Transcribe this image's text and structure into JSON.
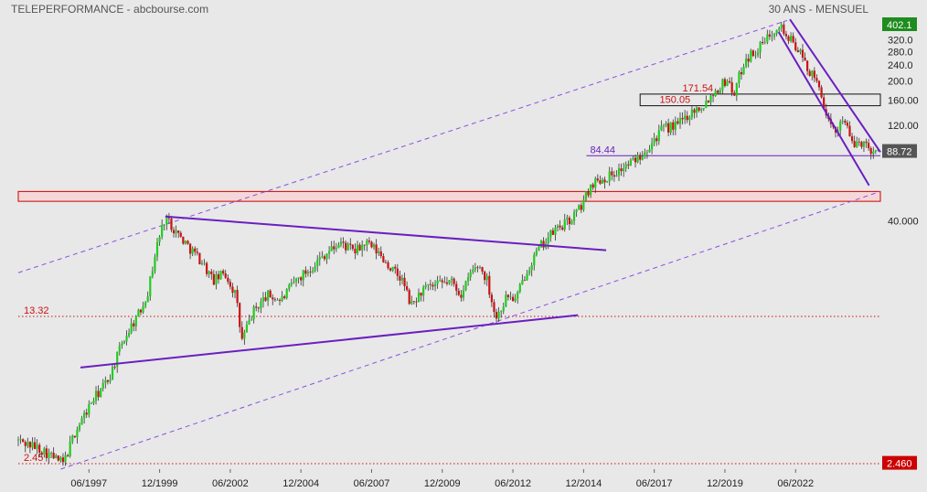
{
  "header": {
    "left_title": "TELEPERFORMANCE - abcbourse.com",
    "right_title": "30 ANS - MENSUEL"
  },
  "colors": {
    "background": "#e8e8e8",
    "up_candle": "#22cc22",
    "down_candle": "#cc1111",
    "trend_line": "#6a1fc0",
    "channel_dash": "#8a4fe0",
    "resistance_zone": "#cc0000",
    "last_price_tag": "#555555",
    "high_tag": "#1e8c1e",
    "low_tag": "#cc0000"
  },
  "chart_data": {
    "type": "candlestick",
    "title": "TELEPERFORMANCE - abcbourse.com",
    "subtitle": "30 ANS - MENSUEL",
    "y_scale": "log",
    "ylim": [
      2.3,
      410
    ],
    "xlim": [
      1995.0,
      2025.5
    ],
    "y_tick_labels": [
      "320.0",
      "280.0",
      "240.0",
      "200.0",
      "160.00",
      "120.00",
      "40.000"
    ],
    "y_tick_values": [
      320,
      280,
      240,
      200,
      160,
      120,
      40
    ],
    "x_tick_labels": [
      "06/1997",
      "12/1999",
      "06/2002",
      "12/2004",
      "06/2007",
      "12/2009",
      "06/2012",
      "12/2014",
      "06/2017",
      "12/2019",
      "06/2022"
    ],
    "x_tick_values": [
      1997.5,
      2000.0,
      2002.5,
      2005.0,
      2007.5,
      2010.0,
      2012.5,
      2015.0,
      2017.5,
      2020.0,
      2022.5
    ],
    "price_path": [
      [
        1995.0,
        3.2
      ],
      [
        1995.8,
        2.9
      ],
      [
        1996.3,
        2.6
      ],
      [
        1996.6,
        2.45
      ],
      [
        1997.0,
        3.5
      ],
      [
        1997.6,
        5.0
      ],
      [
        1998.2,
        6.5
      ],
      [
        1998.7,
        10.0
      ],
      [
        1999.0,
        12.0
      ],
      [
        1999.3,
        14.0
      ],
      [
        1999.6,
        18.0
      ],
      [
        1999.9,
        30.0
      ],
      [
        2000.2,
        42.0
      ],
      [
        2000.6,
        35.0
      ],
      [
        2001.0,
        30.0
      ],
      [
        2001.5,
        25.0
      ],
      [
        2001.9,
        20.0
      ],
      [
        2002.3,
        22.0
      ],
      [
        2002.7,
        17.0
      ],
      [
        2002.9,
        10.0
      ],
      [
        2003.3,
        14.0
      ],
      [
        2003.8,
        17.0
      ],
      [
        2004.3,
        16.0
      ],
      [
        2004.8,
        20.0
      ],
      [
        2005.3,
        23.0
      ],
      [
        2005.8,
        27.0
      ],
      [
        2006.4,
        31.0
      ],
      [
        2006.9,
        28.0
      ],
      [
        2007.3,
        31.0
      ],
      [
        2007.7,
        28.0
      ],
      [
        2008.2,
        23.0
      ],
      [
        2008.6,
        20.0
      ],
      [
        2008.9,
        15.0
      ],
      [
        2009.3,
        18.0
      ],
      [
        2009.8,
        19.0
      ],
      [
        2010.3,
        20.0
      ],
      [
        2010.7,
        17.0
      ],
      [
        2011.0,
        22.0
      ],
      [
        2011.3,
        24.0
      ],
      [
        2011.6,
        20.0
      ],
      [
        2011.9,
        13.0
      ],
      [
        2012.3,
        17.0
      ],
      [
        2012.6,
        16.0
      ],
      [
        2013.0,
        23.0
      ],
      [
        2013.5,
        30.0
      ],
      [
        2014.0,
        36.0
      ],
      [
        2014.5,
        40.0
      ],
      [
        2014.9,
        47.0
      ],
      [
        2015.3,
        62.0
      ],
      [
        2015.8,
        66.0
      ],
      [
        2016.3,
        72.0
      ],
      [
        2016.8,
        80.0
      ],
      [
        2017.3,
        95.0
      ],
      [
        2017.8,
        115.0
      ],
      [
        2018.3,
        120.0
      ],
      [
        2018.8,
        140.0
      ],
      [
        2019.2,
        150.0
      ],
      [
        2019.6,
        175.0
      ],
      [
        2020.1,
        205.0
      ],
      [
        2020.3,
        170.0
      ],
      [
        2020.7,
        255.0
      ],
      [
        2021.2,
        290.0
      ],
      [
        2021.6,
        340.0
      ],
      [
        2021.9,
        390.0
      ],
      [
        2022.2,
        330.0
      ],
      [
        2022.5,
        300.0
      ],
      [
        2022.8,
        250.0
      ],
      [
        2023.1,
        210.0
      ],
      [
        2023.4,
        180.0
      ],
      [
        2023.6,
        125.0
      ],
      [
        2023.9,
        110.0
      ],
      [
        2024.2,
        135.0
      ],
      [
        2024.5,
        95.0
      ],
      [
        2024.8,
        100.0
      ],
      [
        2025.1,
        92.0
      ],
      [
        2025.4,
        88.72
      ]
    ],
    "levels": [
      {
        "label": "13.32",
        "value": 13.32,
        "style": "dotted-red"
      },
      {
        "label": "2.45",
        "value": 2.45,
        "style": "dotted-red"
      },
      {
        "label": "84.44",
        "value": 84.44,
        "style": "solid-purple"
      }
    ],
    "boxes": [
      {
        "label_top": "171.54",
        "label_bottom": "150.05",
        "top": 171.54,
        "bottom": 150.05,
        "x_start": 2017.0
      }
    ],
    "zone": {
      "top": 56,
      "bottom": 50
    },
    "trendlines": [
      {
        "name": "upper-triangle",
        "points": [
          [
            2000.2,
            42
          ],
          [
            2015.8,
            28.5
          ]
        ]
      },
      {
        "name": "lower-triangle",
        "points": [
          [
            1997.2,
            7.4
          ],
          [
            2014.8,
            13.5
          ]
        ]
      },
      {
        "name": "down-channel-upper",
        "points": [
          [
            2022.3,
            405
          ],
          [
            2025.5,
            88
          ]
        ]
      },
      {
        "name": "down-channel-lower",
        "points": [
          [
            2021.9,
            350
          ],
          [
            2025.1,
            60
          ]
        ]
      }
    ],
    "channel": [
      {
        "name": "channel-upper",
        "points": [
          [
            1995.0,
            22.0
          ],
          [
            2022.2,
            400
          ]
        ]
      },
      {
        "name": "channel-lower",
        "points": [
          [
            1996.5,
            2.3
          ],
          [
            2025.5,
            56
          ]
        ]
      }
    ],
    "price_tags": [
      {
        "label": "402.1",
        "value": 402.1,
        "kind": "high"
      },
      {
        "label": "88.72",
        "value": 88.72,
        "kind": "last"
      },
      {
        "label": "2.460",
        "value": 2.46,
        "kind": "low"
      }
    ]
  }
}
